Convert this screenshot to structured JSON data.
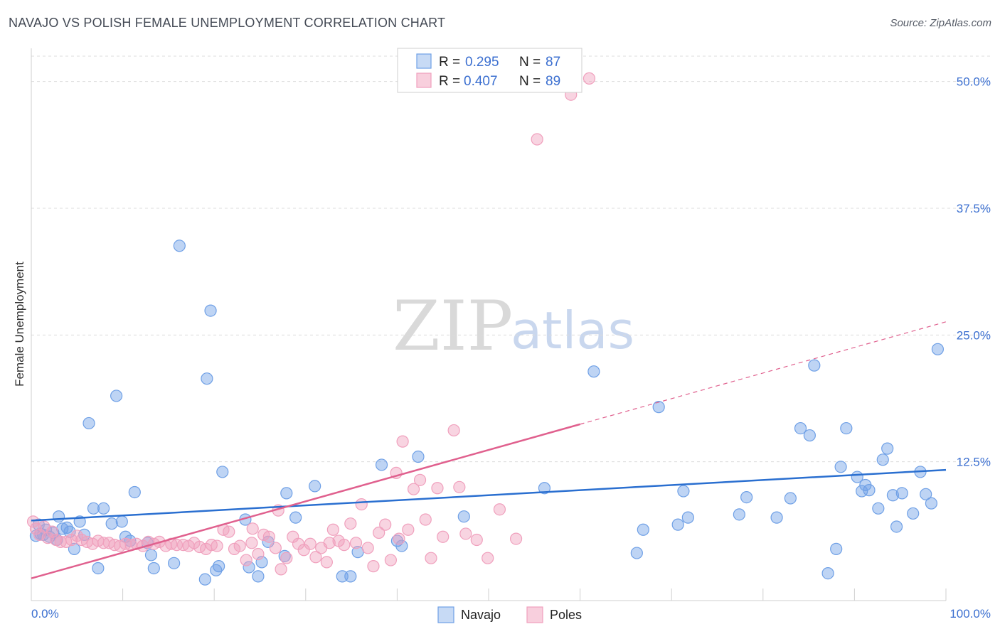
{
  "header": {
    "title": "NAVAJO VS POLISH FEMALE UNEMPLOYMENT CORRELATION CHART",
    "source": "Source: ZipAtlas.com"
  },
  "watermark": {
    "zip": "ZIP",
    "atlas": "atlas"
  },
  "legend_top": {
    "rows": [
      {
        "r_label": "R =",
        "r_value": "0.295",
        "n_label": "N =",
        "n_value": "87"
      },
      {
        "r_label": "R =",
        "r_value": "0.407",
        "n_label": "N =",
        "n_value": "89"
      }
    ]
  },
  "legend_bottom": {
    "navajo": "Navajo",
    "poles": "Poles"
  },
  "chart_data": {
    "type": "scatter",
    "title": "NAVAJO VS POLISH FEMALE UNEMPLOYMENT CORRELATION CHART",
    "xlabel": "",
    "ylabel": "Female Unemployment",
    "xlim": [
      0,
      100
    ],
    "ylim": [
      0,
      52.5
    ],
    "x_tick_labels": [
      "0.0%",
      "100.0%"
    ],
    "y_ticks": [
      12.5,
      25.0,
      37.5,
      50.0
    ],
    "y_tick_labels": [
      "12.5%",
      "25.0%",
      "37.5%",
      "50.0%"
    ],
    "colors": {
      "navajo": "#6fa0e6",
      "navajo_line": "#2a6fd0",
      "poles": "#f0a0bd",
      "poles_line": "#e0608e"
    },
    "series": [
      {
        "name": "Navajo",
        "trend": {
          "x0": 0,
          "y0": 6.7,
          "x1": 100,
          "y1": 11.7
        },
        "points": [
          [
            0.5,
            5.2
          ],
          [
            0.8,
            6.3
          ],
          [
            1.0,
            5.4
          ],
          [
            1.3,
            5.3
          ],
          [
            1.6,
            5.8
          ],
          [
            2.0,
            5.1
          ],
          [
            2.4,
            5.5
          ],
          [
            2.8,
            4.8
          ],
          [
            3.0,
            7.1
          ],
          [
            3.4,
            5.9
          ],
          [
            3.9,
            6.0
          ],
          [
            4.2,
            5.6
          ],
          [
            4.7,
            3.9
          ],
          [
            5.3,
            6.6
          ],
          [
            5.8,
            5.3
          ],
          [
            6.3,
            16.3
          ],
          [
            6.8,
            7.9
          ],
          [
            7.3,
            2.0
          ],
          [
            7.9,
            7.9
          ],
          [
            8.8,
            6.4
          ],
          [
            9.3,
            19.0
          ],
          [
            9.9,
            6.6
          ],
          [
            10.3,
            5.1
          ],
          [
            10.8,
            4.7
          ],
          [
            11.3,
            9.5
          ],
          [
            12.7,
            4.5
          ],
          [
            13.1,
            3.3
          ],
          [
            13.4,
            2.0
          ],
          [
            15.6,
            2.5
          ],
          [
            16.2,
            33.8
          ],
          [
            19.0,
            0.9
          ],
          [
            19.2,
            20.7
          ],
          [
            19.6,
            27.4
          ],
          [
            20.2,
            1.8
          ],
          [
            20.5,
            2.2
          ],
          [
            20.9,
            11.5
          ],
          [
            23.4,
            6.8
          ],
          [
            23.8,
            2.1
          ],
          [
            24.8,
            1.2
          ],
          [
            25.2,
            2.6
          ],
          [
            25.9,
            4.6
          ],
          [
            27.7,
            3.2
          ],
          [
            27.9,
            9.4
          ],
          [
            28.9,
            7.0
          ],
          [
            31.0,
            10.1
          ],
          [
            34.0,
            1.2
          ],
          [
            34.9,
            1.2
          ],
          [
            35.7,
            3.6
          ],
          [
            38.3,
            12.2
          ],
          [
            40.0,
            4.7
          ],
          [
            40.5,
            4.2
          ],
          [
            42.3,
            13.0
          ],
          [
            47.3,
            7.1
          ],
          [
            56.1,
            9.9
          ],
          [
            61.5,
            21.4
          ],
          [
            66.2,
            3.5
          ],
          [
            66.9,
            5.8
          ],
          [
            68.6,
            17.9
          ],
          [
            70.7,
            6.3
          ],
          [
            71.3,
            9.6
          ],
          [
            71.8,
            7.0
          ],
          [
            77.4,
            7.3
          ],
          [
            78.2,
            9.0
          ],
          [
            81.5,
            7.0
          ],
          [
            83.0,
            8.9
          ],
          [
            84.1,
            15.8
          ],
          [
            85.1,
            15.1
          ],
          [
            85.6,
            22.0
          ],
          [
            87.1,
            1.5
          ],
          [
            88.0,
            3.9
          ],
          [
            88.5,
            12.0
          ],
          [
            89.1,
            15.8
          ],
          [
            90.3,
            11.0
          ],
          [
            90.8,
            9.6
          ],
          [
            91.2,
            10.2
          ],
          [
            91.6,
            9.7
          ],
          [
            92.6,
            7.9
          ],
          [
            93.1,
            12.7
          ],
          [
            93.6,
            13.8
          ],
          [
            94.2,
            9.2
          ],
          [
            94.6,
            6.1
          ],
          [
            95.2,
            9.4
          ],
          [
            96.4,
            7.4
          ],
          [
            97.2,
            11.5
          ],
          [
            97.8,
            9.3
          ],
          [
            98.4,
            8.4
          ],
          [
            99.1,
            23.6
          ]
        ]
      },
      {
        "name": "Poles",
        "trend": {
          "x0": 0,
          "y0": 1.0,
          "x1": 60,
          "y1": 16.2
        },
        "trend_extension": {
          "x0": 60,
          "y0": 16.2,
          "x1": 100,
          "y1": 26.3
        },
        "points": [
          [
            0.2,
            6.6
          ],
          [
            0.5,
            5.9
          ],
          [
            0.9,
            5.3
          ],
          [
            1.4,
            6.1
          ],
          [
            1.8,
            5.0
          ],
          [
            2.3,
            5.6
          ],
          [
            2.7,
            4.8
          ],
          [
            3.2,
            4.6
          ],
          [
            3.8,
            4.6
          ],
          [
            4.4,
            4.8
          ],
          [
            5.0,
            5.2
          ],
          [
            5.5,
            4.8
          ],
          [
            6.1,
            4.6
          ],
          [
            6.7,
            4.4
          ],
          [
            7.3,
            4.7
          ],
          [
            7.9,
            4.5
          ],
          [
            8.5,
            4.5
          ],
          [
            9.1,
            4.3
          ],
          [
            9.7,
            4.2
          ],
          [
            10.3,
            4.4
          ],
          [
            10.9,
            4.3
          ],
          [
            11.5,
            4.4
          ],
          [
            12.2,
            4.2
          ],
          [
            12.8,
            4.6
          ],
          [
            13.4,
            4.4
          ],
          [
            14.0,
            4.6
          ],
          [
            14.7,
            4.2
          ],
          [
            15.3,
            4.4
          ],
          [
            15.9,
            4.3
          ],
          [
            16.6,
            4.3
          ],
          [
            17.2,
            4.2
          ],
          [
            17.8,
            4.5
          ],
          [
            18.4,
            4.1
          ],
          [
            19.1,
            3.9
          ],
          [
            19.7,
            4.3
          ],
          [
            20.3,
            4.2
          ],
          [
            21.0,
            5.8
          ],
          [
            21.6,
            5.6
          ],
          [
            22.2,
            3.9
          ],
          [
            22.8,
            4.2
          ],
          [
            23.5,
            2.8
          ],
          [
            24.1,
            4.5
          ],
          [
            24.8,
            3.4
          ],
          [
            25.4,
            5.3
          ],
          [
            26.0,
            5.1
          ],
          [
            26.7,
            4.0
          ],
          [
            27.3,
            1.9
          ],
          [
            27.9,
            3.0
          ],
          [
            28.6,
            5.1
          ],
          [
            29.2,
            4.4
          ],
          [
            29.8,
            3.8
          ],
          [
            30.5,
            4.4
          ],
          [
            31.1,
            3.1
          ],
          [
            31.7,
            4.0
          ],
          [
            32.3,
            2.6
          ],
          [
            33.0,
            5.8
          ],
          [
            33.6,
            4.7
          ],
          [
            34.2,
            4.3
          ],
          [
            34.9,
            6.4
          ],
          [
            35.5,
            4.5
          ],
          [
            36.1,
            8.3
          ],
          [
            36.8,
            4.0
          ],
          [
            37.4,
            2.2
          ],
          [
            38.0,
            5.5
          ],
          [
            38.7,
            6.3
          ],
          [
            39.3,
            2.8
          ],
          [
            39.9,
            11.4
          ],
          [
            40.6,
            14.5
          ],
          [
            41.2,
            5.8
          ],
          [
            41.8,
            9.8
          ],
          [
            42.5,
            10.7
          ],
          [
            43.1,
            6.8
          ],
          [
            43.7,
            3.0
          ],
          [
            44.4,
            9.9
          ],
          [
            45.0,
            5.1
          ],
          [
            46.2,
            15.6
          ],
          [
            47.5,
            5.4
          ],
          [
            48.7,
            4.8
          ],
          [
            49.9,
            3.0
          ],
          [
            51.2,
            7.8
          ],
          [
            53.0,
            4.9
          ],
          [
            55.3,
            44.3
          ],
          [
            59.0,
            48.7
          ],
          [
            61.0,
            50.3
          ],
          [
            24.2,
            5.9
          ],
          [
            32.6,
            4.5
          ],
          [
            40.2,
            4.9
          ],
          [
            46.8,
            10.0
          ],
          [
            27.0,
            7.7
          ]
        ]
      }
    ]
  }
}
